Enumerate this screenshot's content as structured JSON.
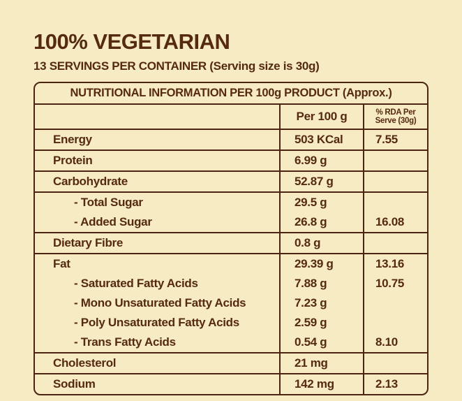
{
  "page": {
    "title": "100% VEGETARIAN",
    "subtitle": "13 SERVINGS PER CONTAINER (Serving size is 30g)"
  },
  "colors": {
    "background": "#f6ebc3",
    "text": "#552a0e",
    "border": "#4b2511"
  },
  "table": {
    "title": "NUTRITIONAL INFORMATION PER 100g PRODUCT (Approx.)",
    "columns": {
      "nutrient": "",
      "per100g": "Per 100 g",
      "rda_line1": "% RDA Per",
      "rda_line2": "Serve (30g)"
    },
    "rows": [
      {
        "lines": [
          {
            "label": "Energy",
            "value": "503 KCal",
            "rda": "7.55",
            "indent": false
          }
        ]
      },
      {
        "lines": [
          {
            "label": "Protein",
            "value": "6.99 g",
            "rda": "",
            "indent": false
          }
        ]
      },
      {
        "lines": [
          {
            "label": "Carbohydrate",
            "value": "52.87 g",
            "rda": "",
            "indent": false
          }
        ]
      },
      {
        "lines": [
          {
            "label": "- Total Sugar",
            "value": "29.5 g",
            "rda": "",
            "indent": true
          },
          {
            "label": "- Added Sugar",
            "value": "26.8 g",
            "rda": "16.08",
            "indent": true
          }
        ]
      },
      {
        "lines": [
          {
            "label": "Dietary Fibre",
            "value": "0.8 g",
            "rda": "",
            "indent": false
          }
        ]
      },
      {
        "lines": [
          {
            "label": "Fat",
            "value": "29.39 g",
            "rda": "13.16",
            "indent": false
          },
          {
            "label": "- Saturated Fatty Acids",
            "value": "7.88 g",
            "rda": "10.75",
            "indent": true
          },
          {
            "label": "- Mono Unsaturated Fatty Acids",
            "value": "7.23 g",
            "rda": "",
            "indent": true
          },
          {
            "label": "- Poly Unsaturated Fatty Acids",
            "value": "2.59 g",
            "rda": "",
            "indent": true
          },
          {
            "label": "- Trans Fatty Acids",
            "value": "0.54 g",
            "rda": "8.10",
            "indent": true
          }
        ]
      },
      {
        "lines": [
          {
            "label": "Cholesterol",
            "value": "21 mg",
            "rda": "",
            "indent": false
          }
        ]
      },
      {
        "lines": [
          {
            "label": "Sodium",
            "value": "142 mg",
            "rda": "2.13",
            "indent": false
          }
        ]
      }
    ]
  }
}
